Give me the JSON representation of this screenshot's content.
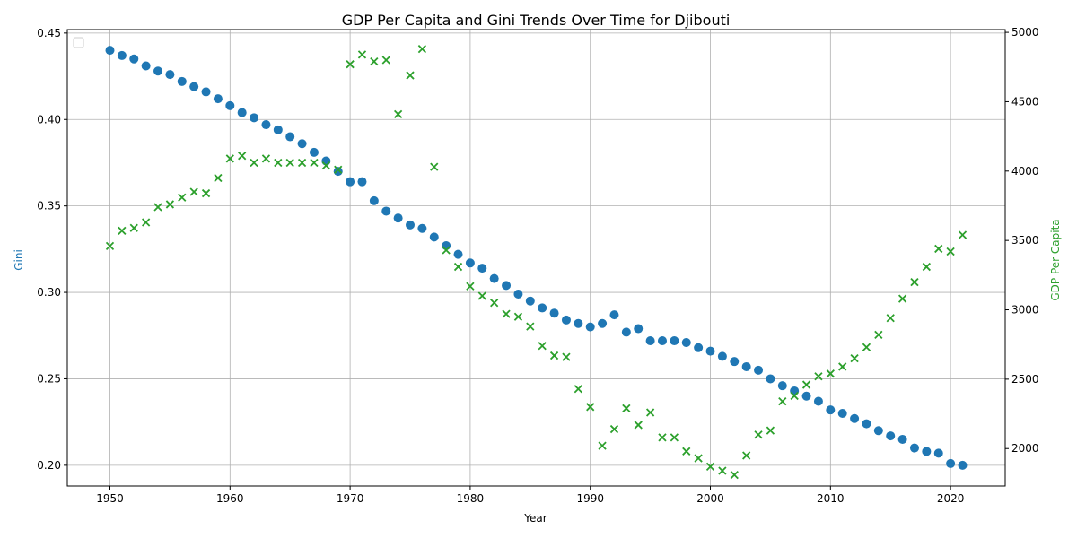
{
  "chart_data": {
    "type": "scatter",
    "title": "GDP Per Capita and Gini Trends Over Time for Djibouti",
    "xlabel": "Year",
    "ylabel_left": "Gini",
    "ylabel_right": "GDP Per Capita",
    "xlim": [
      1946.45,
      1924.55
    ],
    "x_ticks": [
      1950,
      1960,
      1970,
      1980,
      1990,
      2000,
      2010,
      2020
    ],
    "ylim_left": [
      0.188,
      0.452
    ],
    "y_ticks_left": [
      0.2,
      0.25,
      0.3,
      0.35,
      0.4,
      0.45
    ],
    "y_tick_labels_left": [
      "0.20",
      "0.25",
      "0.30",
      "0.35",
      "0.40",
      "0.45"
    ],
    "ylim_right": [
      1730,
      5020
    ],
    "y_ticks_right": [
      2000,
      2500,
      3000,
      3500,
      4000,
      4500,
      5000
    ],
    "grid": true,
    "legend": "top-left",
    "colors": {
      "gini": "#1f77b4",
      "gdp": "#2ca02c"
    },
    "x": [
      1950,
      1951,
      1952,
      1953,
      1954,
      1955,
      1956,
      1957,
      1958,
      1959,
      1960,
      1961,
      1962,
      1963,
      1964,
      1965,
      1966,
      1967,
      1968,
      1969,
      1970,
      1971,
      1972,
      1973,
      1974,
      1975,
      1976,
      1977,
      1978,
      1979,
      1980,
      1981,
      1982,
      1983,
      1984,
      1985,
      1986,
      1987,
      1988,
      1989,
      1990,
      1991,
      1992,
      1993,
      1994,
      1995,
      1996,
      1997,
      1998,
      1999,
      2000,
      2001,
      2002,
      2003,
      2004,
      2005,
      2006,
      2007,
      2008,
      2009,
      2010,
      2011,
      2012,
      2013,
      2014,
      2015,
      2016,
      2017,
      2018,
      2019,
      2020,
      2021
    ],
    "series": [
      {
        "key": "gini",
        "axis": "left",
        "marker": "circle",
        "values": [
          0.44,
          0.437,
          0.435,
          0.431,
          0.428,
          0.426,
          0.422,
          0.419,
          0.416,
          0.412,
          0.408,
          0.404,
          0.401,
          0.397,
          0.394,
          0.39,
          0.386,
          0.381,
          0.376,
          0.37,
          0.364,
          0.364,
          0.353,
          0.347,
          0.343,
          0.339,
          0.337,
          0.332,
          0.327,
          0.322,
          0.317,
          0.314,
          0.308,
          0.304,
          0.299,
          0.295,
          0.291,
          0.288,
          0.284,
          0.282,
          0.28,
          0.282,
          0.287,
          0.277,
          0.279,
          0.272,
          0.272,
          0.272,
          0.271,
          0.268,
          0.266,
          0.263,
          0.26,
          0.257,
          0.255,
          0.25,
          0.246,
          0.243,
          0.24,
          0.237,
          0.232,
          0.23,
          0.227,
          0.224,
          0.22,
          0.217,
          0.215,
          0.21,
          0.208,
          0.207,
          0.201,
          0.2
        ]
      },
      {
        "key": "gdp",
        "axis": "right",
        "marker": "x",
        "values": [
          3460,
          3570,
          3590,
          3630,
          3740,
          3760,
          3810,
          3850,
          3840,
          3950,
          4090,
          4110,
          4060,
          4090,
          4060,
          4060,
          4060,
          4060,
          4040,
          4010,
          4770,
          4840,
          4790,
          4800,
          4410,
          4690,
          4880,
          4030,
          3430,
          3310,
          3170,
          3100,
          3050,
          2970,
          2950,
          2880,
          2740,
          2670,
          2660,
          2430,
          2300,
          2020,
          2140,
          2290,
          2170,
          2260,
          2080,
          2080,
          1980,
          1930,
          1870,
          1840,
          1810,
          1950,
          2100,
          2130,
          2340,
          2380,
          2460,
          2520,
          2540,
          2590,
          2650,
          2730,
          2820,
          2940,
          3080,
          3200,
          3310,
          3440,
          3420,
          3540
        ]
      }
    ]
  }
}
